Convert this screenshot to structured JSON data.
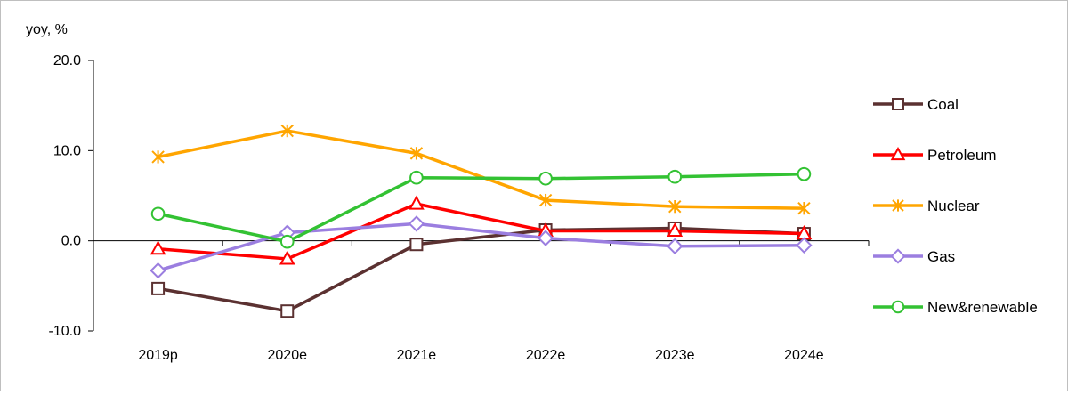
{
  "chart_data": {
    "type": "line",
    "title": "",
    "ylabel": "yoy, %",
    "xlabel": "",
    "categories": [
      "2019p",
      "2020e",
      "2021e",
      "2022e",
      "2023e",
      "2024e"
    ],
    "ylim": [
      -10,
      20
    ],
    "yticks": [
      20,
      10,
      0,
      -10
    ],
    "ytick_labels": [
      "20.0",
      "10.0",
      "0.0",
      "-10.0"
    ],
    "grid": false,
    "legend_position": "right",
    "series": [
      {
        "name": "Coal",
        "color": "#5b3131",
        "marker": "square",
        "values": [
          -5.3,
          -7.8,
          -0.4,
          1.2,
          1.4,
          0.8
        ]
      },
      {
        "name": "Petroleum",
        "color": "#ff0000",
        "marker": "triangle",
        "values": [
          -0.9,
          -2.0,
          4.1,
          1.1,
          1.1,
          0.8
        ]
      },
      {
        "name": "Nuclear",
        "color": "#ffa500",
        "marker": "asterisk",
        "values": [
          9.3,
          12.2,
          9.7,
          4.5,
          3.8,
          3.6
        ]
      },
      {
        "name": "Gas",
        "color": "#9b7ee0",
        "marker": "diamond",
        "values": [
          -3.3,
          0.9,
          1.9,
          0.3,
          -0.6,
          -0.5
        ]
      },
      {
        "name": "New&renewable",
        "color": "#33c233",
        "marker": "circle",
        "values": [
          3.0,
          -0.1,
          7.0,
          6.9,
          7.1,
          7.4
        ]
      }
    ]
  }
}
